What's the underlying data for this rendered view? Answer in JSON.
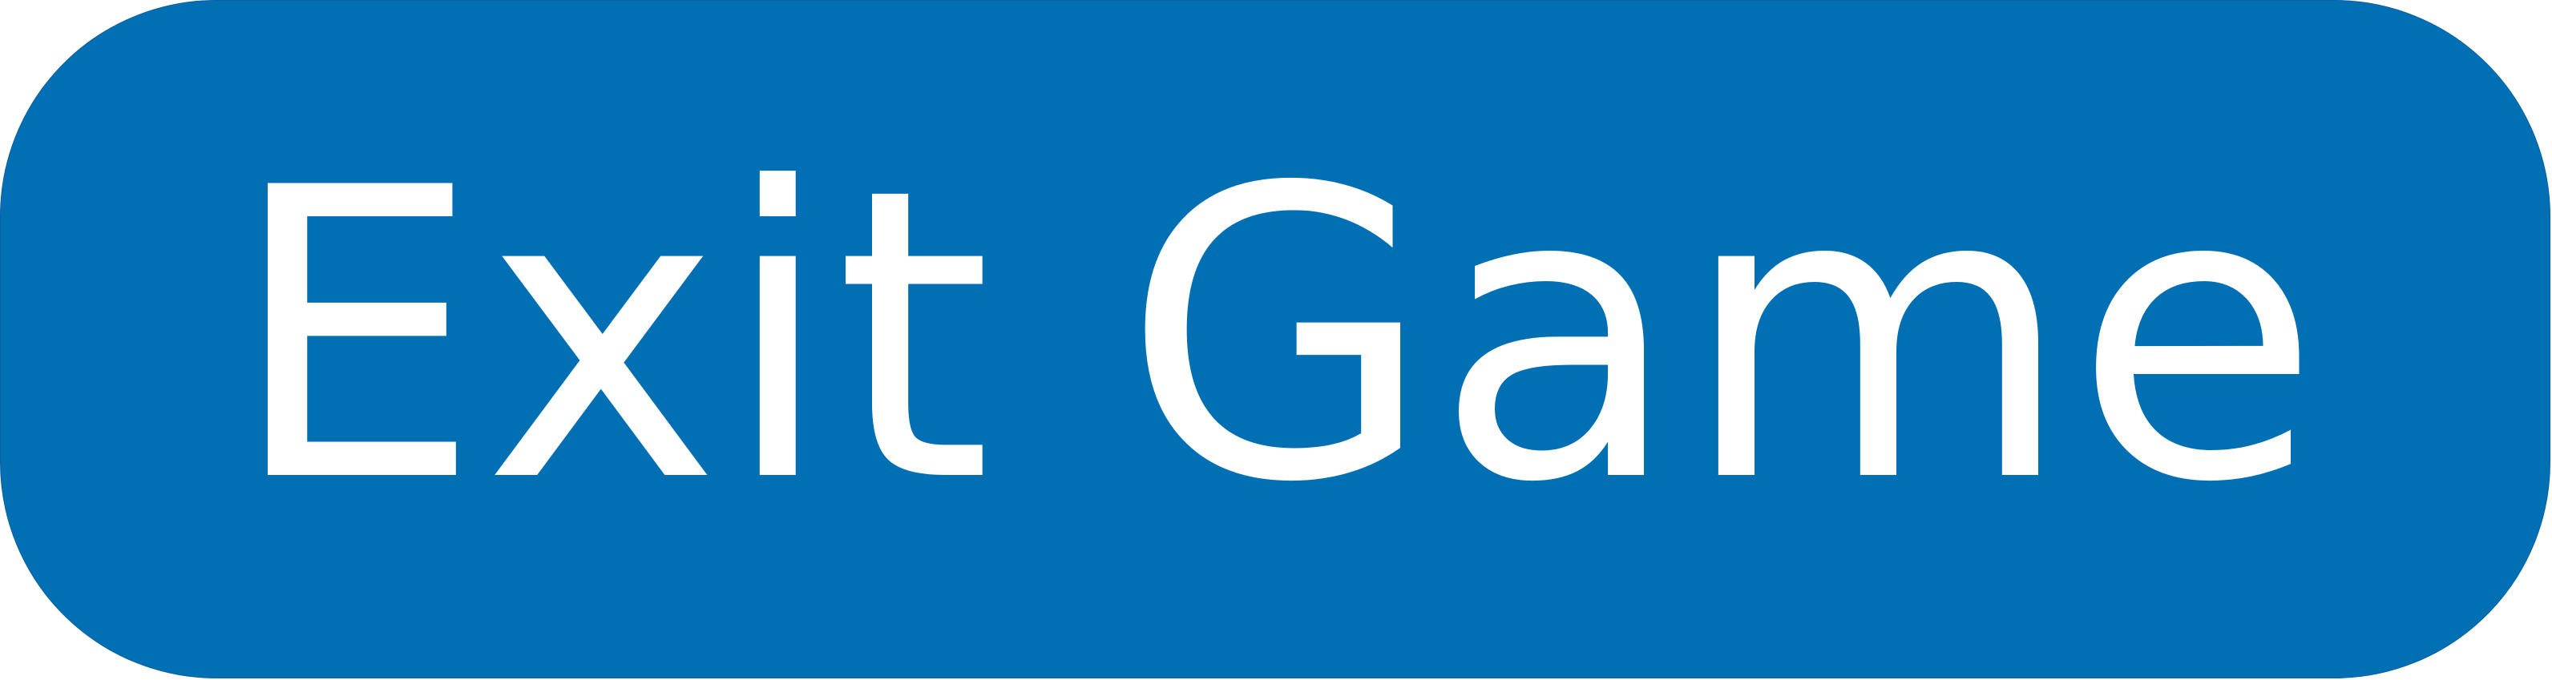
{
  "button": {
    "label": "Exit Game",
    "background_color": "#006fb3",
    "text_color": "#ffffff"
  }
}
